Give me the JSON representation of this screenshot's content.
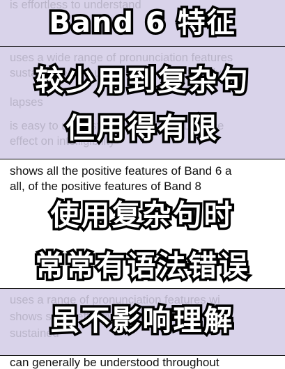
{
  "background": {
    "lines": [
      "is effortless to understand",
      "uses a wide range of pronunciation features",
      "sustains flexible use of features, with only",
      "lapses",
      "is easy to understand throughout; L1 acce",
      "effect on intelligibility",
      "shows all the positive features of Band 6 a",
      "all, of the positive features of Band 8",
      "uses a range of pronunciation features wi",
      "shows some effective use of features but",
      "sustained",
      "can generally be understood throughout"
    ]
  },
  "overlay": {
    "line1": "Band 6 特征",
    "line2": "较少用到复杂句",
    "line3": "但用得有限",
    "line4": "使用复杂句时",
    "line5": "常常有语法错误",
    "line6": "虽不影响理解"
  },
  "colors": {
    "shade": "#d9d3ea",
    "faded_text": "#b9b4c8",
    "overlay_fill": "#ffffff",
    "overlay_stroke": "#000000"
  }
}
